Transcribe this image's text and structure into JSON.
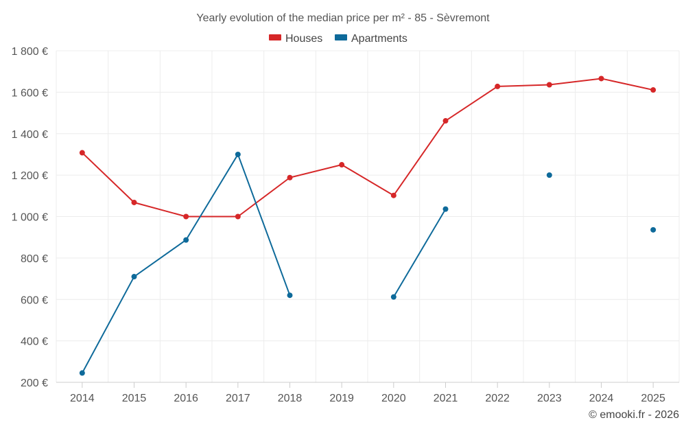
{
  "chart_data": {
    "type": "line",
    "title": "Yearly evolution of the median price per m² - 85 - Sèvremont",
    "categories": [
      "2014",
      "2015",
      "2016",
      "2017",
      "2018",
      "2019",
      "2020",
      "2021",
      "2022",
      "2023",
      "2024",
      "2025"
    ],
    "ylim": [
      200,
      1800
    ],
    "yticks": [
      200,
      400,
      600,
      800,
      1000,
      1200,
      1400,
      1600,
      1800
    ],
    "ytick_labels": [
      "200 €",
      "400 €",
      "600 €",
      "800 €",
      "1 000 €",
      "1 200 €",
      "1 400 €",
      "1 600 €",
      "1 800 €"
    ],
    "legend_position": "top-center",
    "grid": true,
    "series": [
      {
        "name": "Houses",
        "color": "#d62728",
        "values": [
          1308,
          1068,
          1000,
          1000,
          1188,
          1250,
          1102,
          1462,
          1628,
          1636,
          1666,
          1611
        ]
      },
      {
        "name": "Apartments",
        "color": "#0e6a9a",
        "values": [
          245,
          710,
          887,
          1300,
          620,
          null,
          612,
          1036,
          null,
          1200,
          null,
          936
        ]
      }
    ]
  },
  "credit": "© emooki.fr - 2026"
}
